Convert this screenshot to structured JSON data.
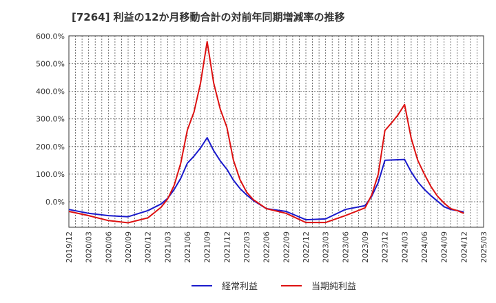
{
  "chart_data": {
    "type": "line",
    "title": "[7264]  利益の12か月移動合計の対前年同期増減率の推移",
    "xlabel": "",
    "ylabel": "",
    "ylim": [
      -90,
      600
    ],
    "y_ticks": [
      0,
      100,
      200,
      300,
      400,
      500,
      600
    ],
    "y_tick_labels": [
      "0.0%",
      "100.0%",
      "200.0%",
      "300.0%",
      "400.0%",
      "500.0%",
      "600.0%"
    ],
    "x_tick_labels": [
      "2019/12",
      "2020/03",
      "2020/06",
      "2020/09",
      "2020/12",
      "2021/03",
      "2021/06",
      "2021/09",
      "2021/12",
      "2022/03",
      "2022/06",
      "2022/09",
      "2022/12",
      "2023/03",
      "2023/06",
      "2023/09",
      "2023/12",
      "2024/03",
      "2024/06",
      "2024/09",
      "2024/12",
      "2025/03"
    ],
    "grid": true,
    "legend_position": "bottom",
    "series": [
      {
        "name": "経常利益",
        "color": "#1a1acc",
        "points": [
          [
            0,
            -28
          ],
          [
            3,
            -42
          ],
          [
            6,
            -50
          ],
          [
            9,
            -54
          ],
          [
            12,
            -32
          ],
          [
            14,
            -8
          ],
          [
            15,
            12
          ],
          [
            16,
            45
          ],
          [
            17,
            85
          ],
          [
            18,
            140
          ],
          [
            19,
            165
          ],
          [
            20,
            195
          ],
          [
            21,
            232
          ],
          [
            22,
            185
          ],
          [
            23,
            148
          ],
          [
            24,
            118
          ],
          [
            25,
            78
          ],
          [
            26,
            48
          ],
          [
            27,
            25
          ],
          [
            28,
            5
          ],
          [
            30,
            -25
          ],
          [
            33,
            -35
          ],
          [
            36,
            -65
          ],
          [
            39,
            -62
          ],
          [
            42,
            -28
          ],
          [
            45,
            -14
          ],
          [
            46,
            20
          ],
          [
            47,
            70
          ],
          [
            48,
            150
          ],
          [
            51,
            153
          ],
          [
            52,
            108
          ],
          [
            53,
            72
          ],
          [
            54,
            45
          ],
          [
            55,
            22
          ],
          [
            56,
            2
          ],
          [
            57,
            -18
          ],
          [
            58,
            -28
          ],
          [
            59,
            -32
          ],
          [
            60,
            -37
          ]
        ]
      },
      {
        "name": "当期純利益",
        "color": "#dd1111",
        "points": [
          [
            0,
            -35
          ],
          [
            3,
            -50
          ],
          [
            6,
            -68
          ],
          [
            9,
            -76
          ],
          [
            12,
            -58
          ],
          [
            14,
            -20
          ],
          [
            15,
            10
          ],
          [
            16,
            60
          ],
          [
            17,
            140
          ],
          [
            18,
            260
          ],
          [
            19,
            325
          ],
          [
            20,
            430
          ],
          [
            21,
            580
          ],
          [
            22,
            430
          ],
          [
            23,
            335
          ],
          [
            24,
            270
          ],
          [
            25,
            150
          ],
          [
            26,
            80
          ],
          [
            27,
            35
          ],
          [
            28,
            8
          ],
          [
            30,
            -25
          ],
          [
            33,
            -42
          ],
          [
            36,
            -75
          ],
          [
            39,
            -75
          ],
          [
            42,
            -50
          ],
          [
            45,
            -22
          ],
          [
            46,
            25
          ],
          [
            47,
            100
          ],
          [
            48,
            258
          ],
          [
            49,
            285
          ],
          [
            50,
            315
          ],
          [
            51,
            352
          ],
          [
            52,
            230
          ],
          [
            53,
            150
          ],
          [
            54,
            100
          ],
          [
            55,
            55
          ],
          [
            56,
            20
          ],
          [
            57,
            -5
          ],
          [
            58,
            -25
          ],
          [
            59,
            -32
          ],
          [
            60,
            -42
          ]
        ]
      }
    ]
  }
}
